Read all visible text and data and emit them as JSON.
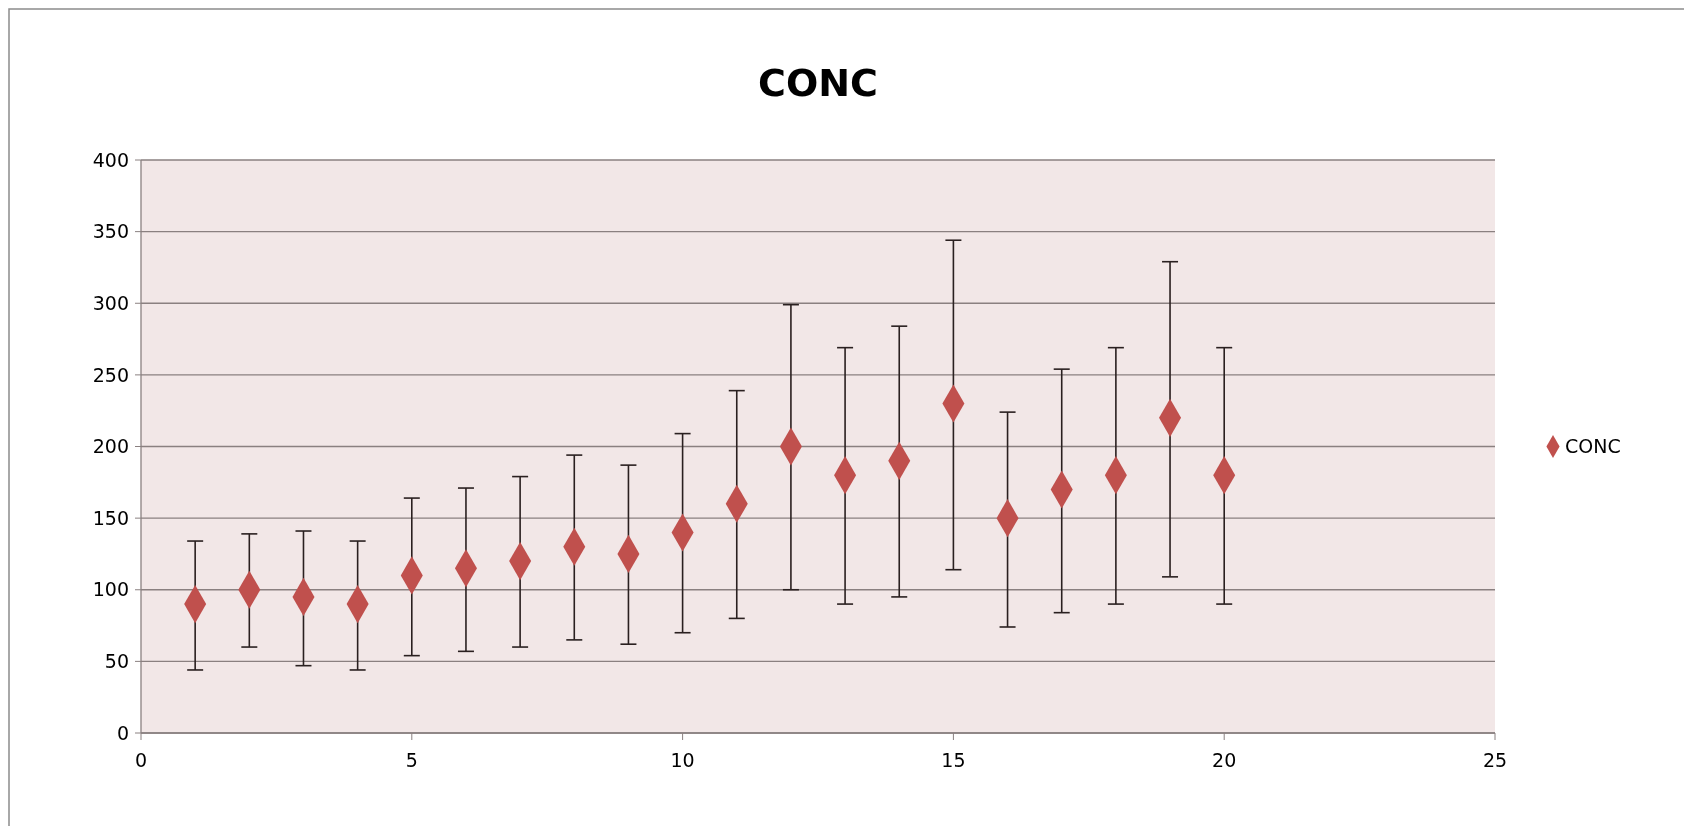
{
  "chart_data": {
    "type": "scatter",
    "title": "CONC",
    "x": [
      1,
      2,
      3,
      4,
      5,
      6,
      7,
      8,
      9,
      10,
      11,
      12,
      13,
      14,
      15,
      16,
      17,
      18,
      19,
      20
    ],
    "series": [
      {
        "name": "CONC",
        "color": "#c0504d",
        "values": [
          90,
          100,
          95,
          90,
          110,
          115,
          120,
          130,
          125,
          140,
          160,
          200,
          180,
          190,
          230,
          150,
          170,
          180,
          220,
          180
        ],
        "errors": [
          [
            44,
            134
          ],
          [
            60,
            139
          ],
          [
            47,
            141
          ],
          [
            44,
            134
          ],
          [
            54,
            164
          ],
          [
            57,
            171
          ],
          [
            60,
            179
          ],
          [
            65,
            194
          ],
          [
            62,
            187
          ],
          [
            70,
            209
          ],
          [
            80,
            239
          ],
          [
            100,
            299
          ],
          [
            90,
            269
          ],
          [
            95,
            284
          ],
          [
            114,
            344
          ],
          [
            74,
            224
          ],
          [
            84,
            254
          ],
          [
            90,
            269
          ],
          [
            109,
            329
          ],
          [
            90,
            269
          ]
        ]
      }
    ],
    "xlim": [
      0,
      25
    ],
    "xticks": [
      0,
      5,
      10,
      15,
      20,
      25
    ],
    "ylim": [
      0,
      400
    ],
    "yticks": [
      0,
      50,
      100,
      150,
      200,
      250,
      300,
      350,
      400
    ],
    "grid": "y",
    "legend": "right",
    "marker": "diamond"
  }
}
